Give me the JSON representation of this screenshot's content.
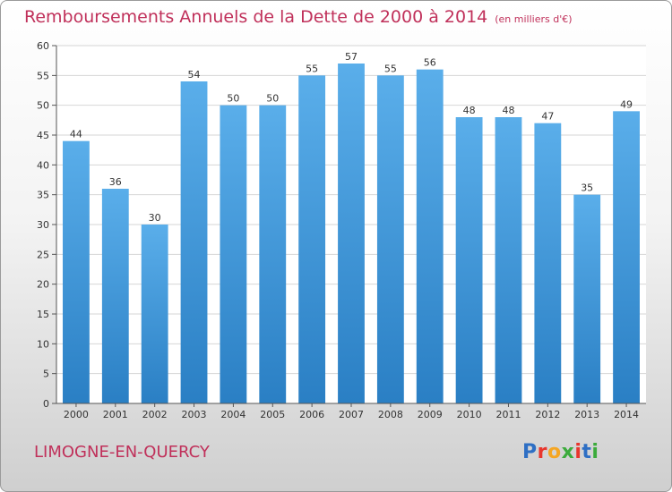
{
  "title": "Remboursements Annuels de la Dette de 2000 à 2014",
  "subtitle": "(en milliers d'€)",
  "commune": "LIMOGNE-EN-QUERCY",
  "logo": {
    "text": "Proxiti",
    "letter_colors": [
      "#2e6fc4",
      "#e8362d",
      "#f5a623",
      "#3cab3c",
      "#e8362d",
      "#2e6fc4",
      "#3cab3c"
    ]
  },
  "chart_data": {
    "type": "bar",
    "categories": [
      "2000",
      "2001",
      "2002",
      "2003",
      "2004",
      "2005",
      "2006",
      "2007",
      "2008",
      "2009",
      "2010",
      "2011",
      "2012",
      "2013",
      "2014"
    ],
    "values": [
      44,
      36,
      30,
      54,
      50,
      50,
      55,
      57,
      55,
      56,
      48,
      48,
      47,
      35,
      49
    ],
    "ylim": [
      0,
      60
    ],
    "yticks": [
      0,
      5,
      10,
      15,
      20,
      25,
      30,
      35,
      40,
      45,
      50,
      55,
      60
    ],
    "grid": true,
    "bar_color_top": "#5aaeea",
    "bar_color_bottom": "#2a7fc4"
  }
}
